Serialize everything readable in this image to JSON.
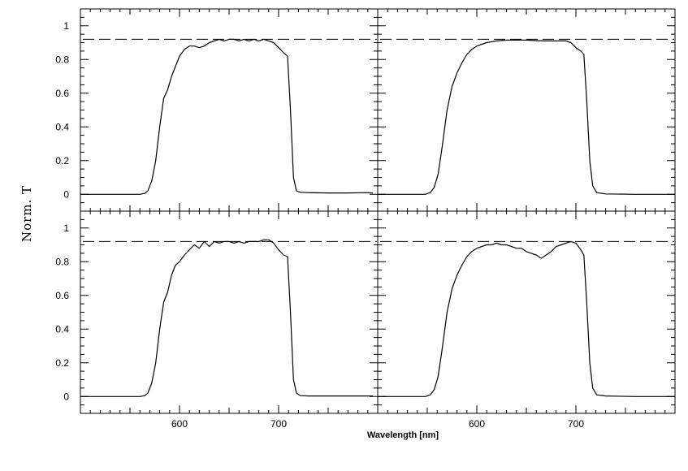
{
  "chart_data": {
    "type": "line",
    "layout": "2x2 shared axes",
    "xlabel": "Wavelength [nm]",
    "ylabel": "Norm. T",
    "xlim": [
      500,
      800
    ],
    "ylim": [
      -0.1,
      1.1
    ],
    "xticks_labeled": [
      600,
      700
    ],
    "yticks_labeled": [
      0,
      0.2,
      0.4,
      0.6,
      0.8,
      1
    ],
    "ytick_labels": [
      "0",
      "0.2",
      "0.4",
      "0.6",
      "0.8",
      "1"
    ],
    "xtick_labels": [
      "600",
      "700"
    ],
    "reference_line": {
      "y": 0.92,
      "style": "dashed"
    },
    "panels": [
      {
        "position": "top-left",
        "x": [
          500,
          560,
          565,
          568,
          572,
          576,
          580,
          584,
          588,
          592,
          596,
          600,
          605,
          610,
          615,
          620,
          625,
          630,
          635,
          640,
          645,
          650,
          655,
          660,
          665,
          670,
          675,
          680,
          685,
          690,
          695,
          700,
          705,
          709,
          712,
          715,
          718,
          722,
          730,
          750,
          770,
          790,
          795
        ],
        "y": [
          0,
          0,
          0.005,
          0.02,
          0.08,
          0.2,
          0.4,
          0.57,
          0.62,
          0.7,
          0.76,
          0.82,
          0.86,
          0.88,
          0.88,
          0.87,
          0.88,
          0.9,
          0.91,
          0.92,
          0.91,
          0.92,
          0.92,
          0.91,
          0.92,
          0.91,
          0.92,
          0.91,
          0.92,
          0.91,
          0.9,
          0.87,
          0.84,
          0.82,
          0.5,
          0.1,
          0.02,
          0.012,
          0.01,
          0.008,
          0.008,
          0.01,
          0.008
        ]
      },
      {
        "position": "top-right",
        "x": [
          500,
          548,
          553,
          557,
          561,
          565,
          570,
          575,
          580,
          585,
          590,
          595,
          600,
          610,
          620,
          630,
          640,
          650,
          660,
          670,
          680,
          690,
          695,
          700,
          705,
          708,
          711,
          714,
          717,
          721,
          730,
          760,
          790,
          800
        ],
        "y": [
          0,
          0,
          0.01,
          0.04,
          0.12,
          0.28,
          0.5,
          0.64,
          0.72,
          0.78,
          0.83,
          0.86,
          0.88,
          0.9,
          0.91,
          0.915,
          0.915,
          0.915,
          0.912,
          0.91,
          0.91,
          0.91,
          0.9,
          0.87,
          0.85,
          0.83,
          0.55,
          0.2,
          0.05,
          0.01,
          0.002,
          0,
          0,
          0
        ]
      },
      {
        "position": "bottom-left",
        "x": [
          500,
          560,
          565,
          568,
          572,
          576,
          580,
          584,
          588,
          592,
          596,
          600,
          605,
          610,
          615,
          620,
          625,
          630,
          635,
          640,
          645,
          650,
          655,
          660,
          665,
          670,
          675,
          680,
          685,
          690,
          695,
          700,
          705,
          709,
          712,
          715,
          718,
          722,
          730,
          760,
          790,
          795
        ],
        "y": [
          0,
          0,
          0.005,
          0.02,
          0.08,
          0.2,
          0.4,
          0.56,
          0.62,
          0.72,
          0.78,
          0.8,
          0.84,
          0.87,
          0.9,
          0.88,
          0.92,
          0.89,
          0.92,
          0.91,
          0.92,
          0.92,
          0.91,
          0.92,
          0.91,
          0.92,
          0.92,
          0.92,
          0.93,
          0.93,
          0.91,
          0.87,
          0.84,
          0.83,
          0.5,
          0.1,
          0.02,
          0.005,
          0.003,
          0.003,
          0.003,
          0.003
        ]
      },
      {
        "position": "bottom-right",
        "x": [
          500,
          548,
          553,
          557,
          561,
          565,
          570,
          575,
          580,
          585,
          590,
          595,
          600,
          605,
          610,
          615,
          620,
          625,
          630,
          635,
          640,
          645,
          650,
          655,
          660,
          665,
          670,
          675,
          680,
          685,
          690,
          695,
          700,
          705,
          708,
          711,
          714,
          717,
          721,
          730,
          760,
          790,
          800
        ],
        "y": [
          0,
          0,
          0.01,
          0.04,
          0.12,
          0.28,
          0.5,
          0.64,
          0.72,
          0.78,
          0.83,
          0.86,
          0.88,
          0.89,
          0.9,
          0.9,
          0.91,
          0.9,
          0.9,
          0.89,
          0.88,
          0.88,
          0.86,
          0.85,
          0.84,
          0.82,
          0.84,
          0.86,
          0.89,
          0.9,
          0.91,
          0.92,
          0.91,
          0.87,
          0.84,
          0.55,
          0.2,
          0.05,
          0.01,
          0.003,
          0.0,
          0.0,
          0.0
        ]
      }
    ]
  }
}
